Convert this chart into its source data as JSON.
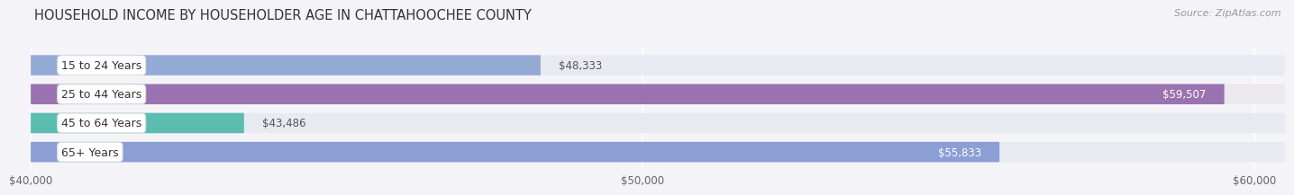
{
  "title": "HOUSEHOLD INCOME BY HOUSEHOLDER AGE IN CHATTAHOOCHEE COUNTY",
  "source": "Source: ZipAtlas.com",
  "categories": [
    "15 to 24 Years",
    "25 to 44 Years",
    "45 to 64 Years",
    "65+ Years"
  ],
  "values": [
    48333,
    59507,
    43486,
    55833
  ],
  "bar_colors": [
    "#93aad4",
    "#9b72b0",
    "#5bbcb0",
    "#8b9fd4"
  ],
  "bar_bg_colors": [
    "#e8eaf2",
    "#ece8f0",
    "#e8eaf2",
    "#e8eaf2"
  ],
  "value_labels": [
    "$48,333",
    "$59,507",
    "$43,486",
    "$55,833"
  ],
  "value_label_inside": [
    false,
    true,
    false,
    true
  ],
  "xlim_min": 40000,
  "xlim_max": 60500,
  "xticks": [
    40000,
    50000,
    60000
  ],
  "xtick_labels": [
    "$40,000",
    "$50,000",
    "$60,000"
  ],
  "title_fontsize": 10.5,
  "source_fontsize": 8,
  "label_fontsize": 9,
  "value_fontsize": 8.5,
  "background_color": "#f4f4f8"
}
